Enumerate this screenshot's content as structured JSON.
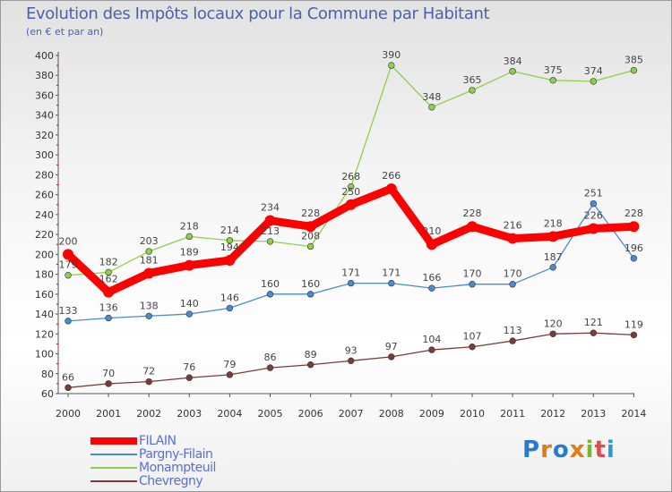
{
  "title": "Evolution des Impôts locaux pour la Commune par Habitant",
  "subtitle": "(en € et par an)",
  "chart_data": {
    "type": "line",
    "title": "Evolution des Impôts locaux pour la Commune par Habitant",
    "subtitle": "(en € et par an)",
    "xlabel": "",
    "ylabel": "",
    "categories": [
      "2000",
      "2001",
      "2002",
      "2003",
      "2004",
      "2005",
      "2006",
      "2007",
      "2008",
      "2009",
      "2010",
      "2011",
      "2012",
      "2013",
      "2014"
    ],
    "ylim": [
      60,
      400
    ],
    "yticks": [
      60,
      80,
      100,
      120,
      140,
      160,
      180,
      200,
      220,
      240,
      260,
      280,
      300,
      320,
      340,
      360,
      380,
      400
    ],
    "grid": false,
    "legend_position": "bottom-left",
    "series": [
      {
        "name": "Monampteuil",
        "color": "#8dd04a",
        "values": [
          179,
          182,
          203,
          218,
          214,
          213,
          208,
          268,
          390,
          348,
          365,
          384,
          375,
          374,
          385
        ],
        "labels": [
          "179",
          "182",
          "203",
          "218",
          "214",
          "213",
          "208",
          "268",
          "390",
          "348",
          "365",
          "384",
          "375",
          "374",
          "385"
        ]
      },
      {
        "name": "Pargny-Filain",
        "color": "#4a8ad0",
        "values": [
          133,
          136,
          138,
          140,
          146,
          160,
          160,
          171,
          171,
          166,
          170,
          170,
          187,
          251,
          196
        ],
        "labels": [
          "133",
          "136",
          "138",
          "140",
          "146",
          "160",
          "160",
          "171",
          "171",
          "166",
          "170",
          "170",
          "187",
          "251",
          "196"
        ]
      },
      {
        "name": "Chevregny",
        "color": "#7b3b3b",
        "values": [
          66,
          70,
          72,
          76,
          79,
          86,
          89,
          93,
          97,
          104,
          107,
          113,
          120,
          121,
          119
        ],
        "labels": [
          "66",
          "70",
          "72",
          "76",
          "79",
          "86",
          "89",
          "93",
          "97",
          "104",
          "107",
          "113",
          "120",
          "121",
          "119"
        ]
      },
      {
        "name": "FILAIN",
        "color": "#ff0000",
        "values": [
          200,
          162,
          181,
          189,
          194,
          234,
          228,
          250,
          266,
          210,
          228,
          216,
          218,
          226,
          228
        ],
        "labels": [
          "200",
          "162",
          "181",
          "189",
          "194",
          "234",
          "228",
          "250",
          "266",
          "210",
          "228",
          "216",
          "218",
          "226",
          "228"
        ]
      }
    ]
  },
  "legend": {
    "items": [
      {
        "name": "FILAIN",
        "color": "#ff0000"
      },
      {
        "name": "Pargny-Filain",
        "color": "#4a8ad0"
      },
      {
        "name": "Monampteuil",
        "color": "#8dd04a"
      },
      {
        "name": "Chevregny",
        "color": "#7b3b3b"
      }
    ]
  },
  "logo": {
    "text": "Proxiti",
    "colors": [
      "#2a7ad0",
      "#e07a1a",
      "#2a7ad0",
      "#e07a1a",
      "#7ab82a",
      "#e04a4a",
      "#2a9ad0"
    ]
  }
}
